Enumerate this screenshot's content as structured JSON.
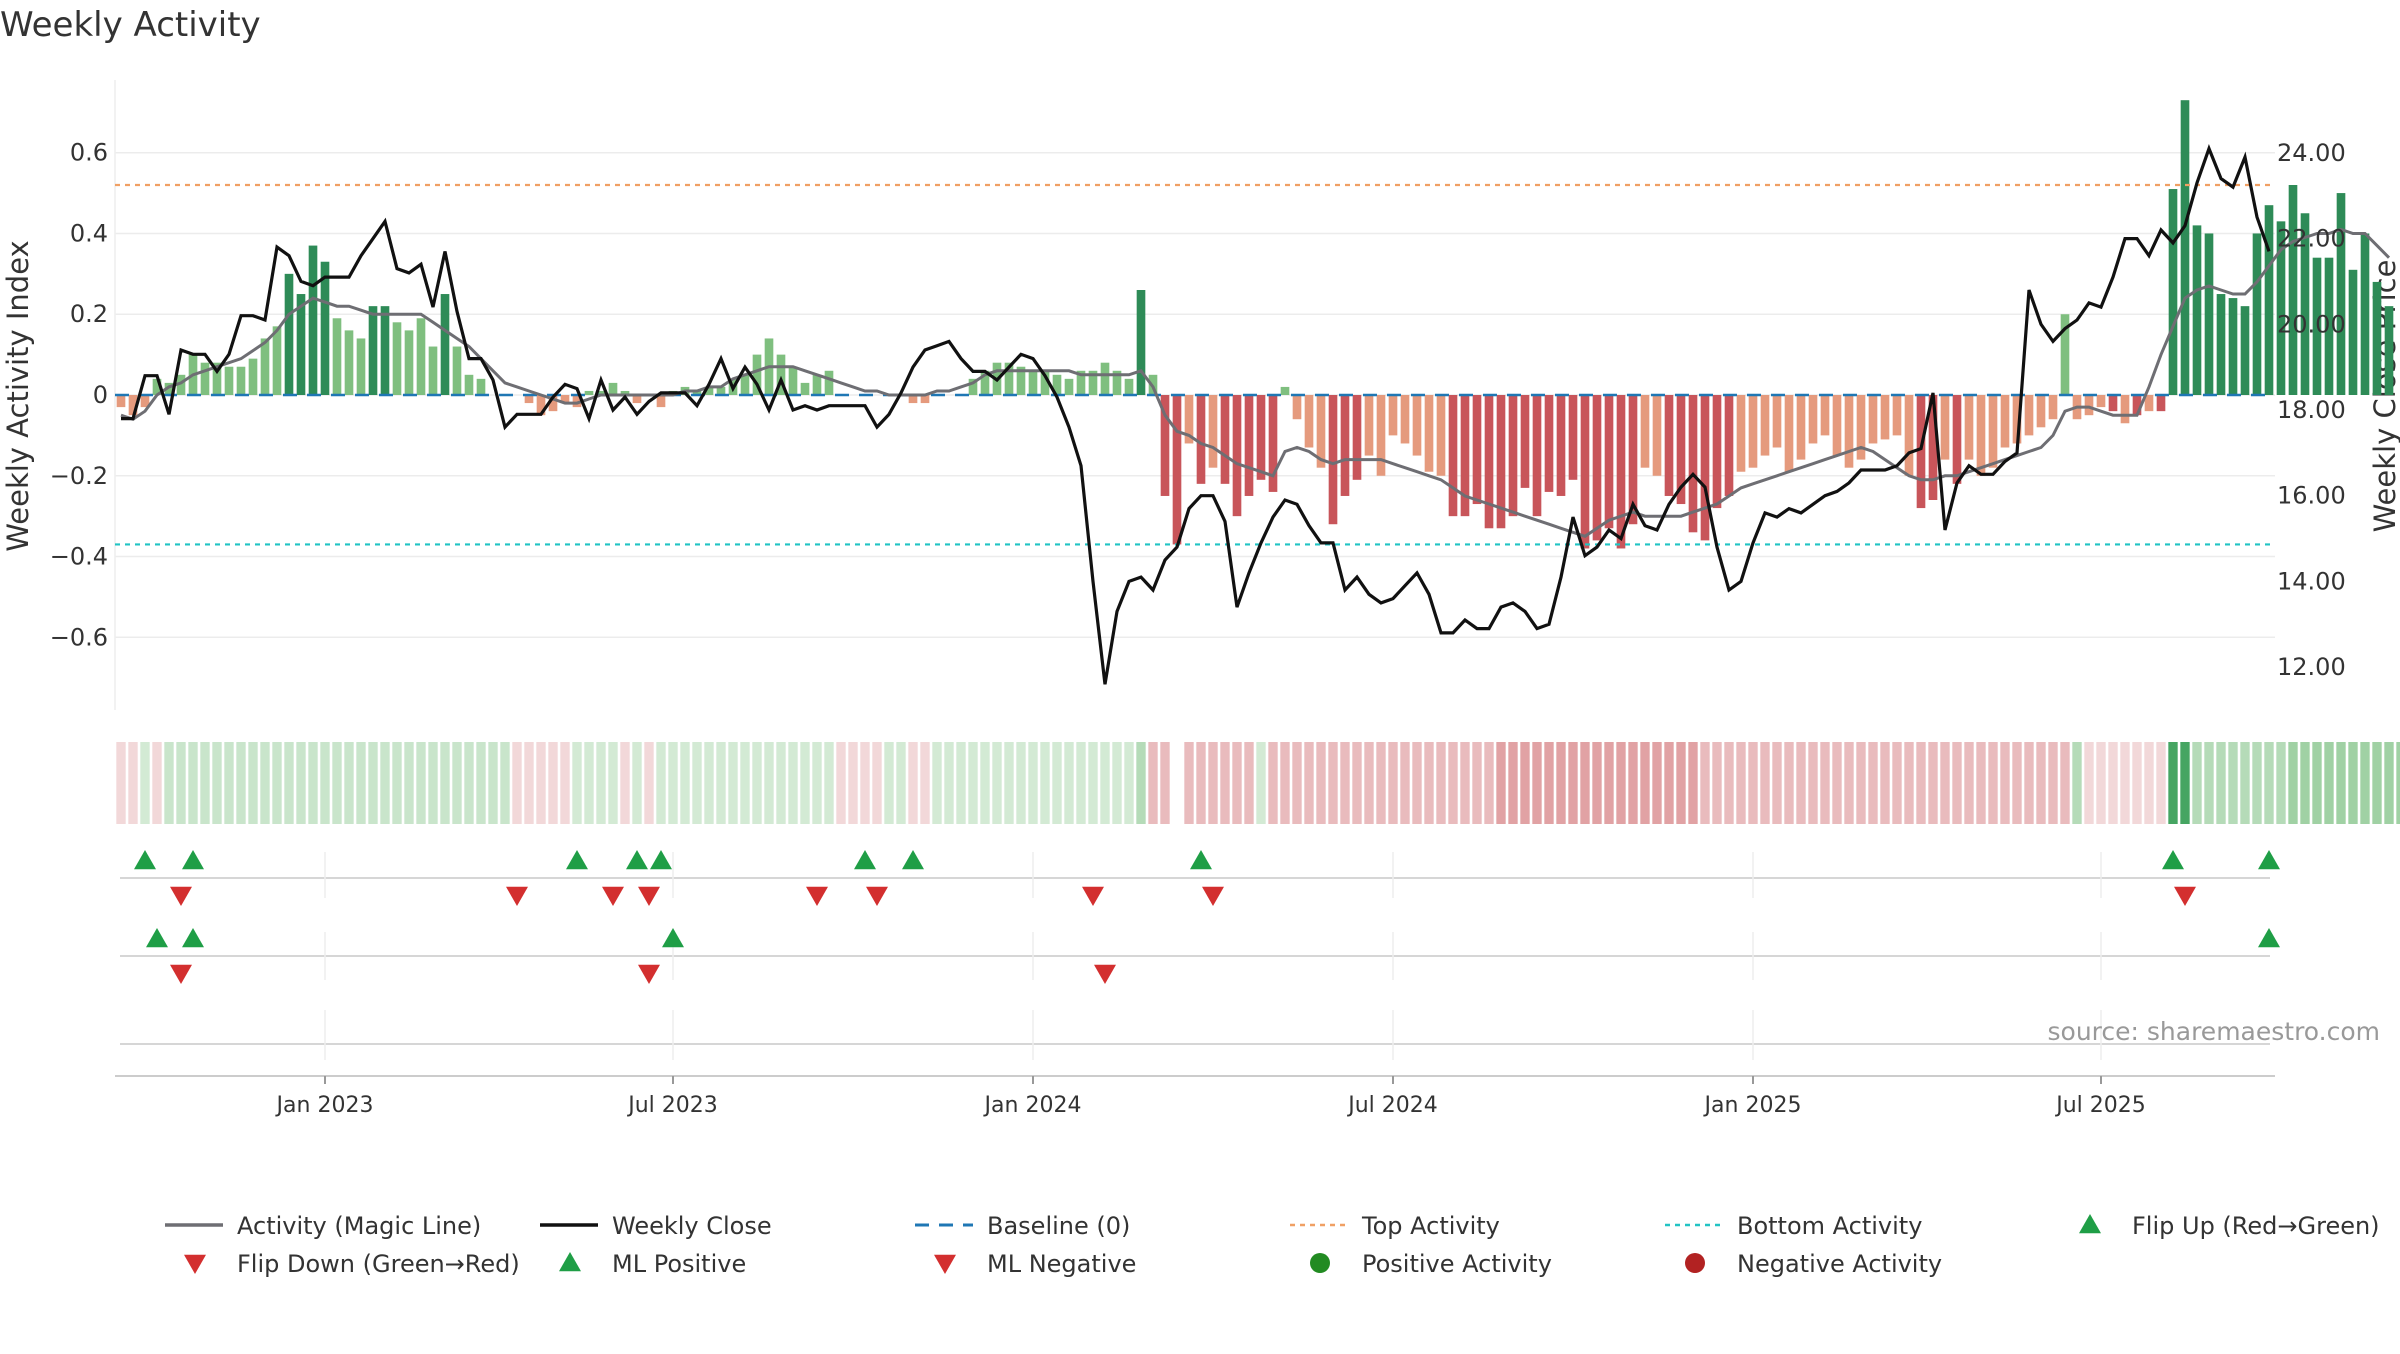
{
  "colors": {
    "pos_dark": "#2e8b57",
    "pos_light": "#7fbf7f",
    "neg_dark": "#c8555a",
    "neg_light": "#e59a7d",
    "magic": "#6e6e73",
    "close": "#111111",
    "baseline": "#1f77b4",
    "top": "#f0a064",
    "bottom": "#22c4c4",
    "marker_green": "#1f9e46",
    "marker_red": "#d32f2f",
    "legend_pos": "#228b22",
    "legend_neg": "#b22222"
  },
  "chart_data": {
    "type": "bar",
    "title": "Weekly Activity",
    "ylabel": "Weekly Activity Index",
    "y2label": "Weekly Close Price",
    "ylim": [
      -0.78,
      0.78
    ],
    "y2lim": [
      11.0,
      25.7
    ],
    "yticks": [
      "0.6",
      "0.4",
      "0.2",
      "0",
      "−0.2",
      "−0.4",
      "−0.6"
    ],
    "yticks_values": [
      0.6,
      0.4,
      0.2,
      0,
      -0.2,
      -0.4,
      -0.6
    ],
    "y2ticks": [
      "24.00",
      "22.00",
      "20.00",
      "18.00",
      "16.00",
      "14.00",
      "12.00"
    ],
    "y2ticks_values": [
      24,
      22,
      20,
      18,
      16,
      14,
      12
    ],
    "xticks": [
      "Jan 2023",
      "Jul 2023",
      "Jan 2024",
      "Jul 2024",
      "Jan 2025",
      "Jul 2025"
    ],
    "xticks_weeks": [
      17,
      46,
      76,
      106,
      136,
      165
    ],
    "weeks": 180,
    "top_activity": 0.52,
    "bottom_activity": -0.37,
    "baseline": 0,
    "activity": [
      -0.03,
      -0.05,
      -0.03,
      0.04,
      0.03,
      0.05,
      0.1,
      0.08,
      0.08,
      0.07,
      0.07,
      0.09,
      0.14,
      0.17,
      0.3,
      0.25,
      0.37,
      0.33,
      0.19,
      0.16,
      0.14,
      0.22,
      0.22,
      0.18,
      0.16,
      0.19,
      0.12,
      0.25,
      0.12,
      0.05,
      0.04,
      0.0,
      0.0,
      0.0,
      -0.02,
      -0.05,
      -0.04,
      -0.02,
      -0.03,
      0.01,
      0.01,
      0.03,
      0.01,
      -0.02,
      0.0,
      -0.03,
      0.01,
      0.02,
      0.01,
      0.02,
      0.02,
      0.04,
      0.05,
      0.1,
      0.14,
      0.1,
      0.07,
      0.03,
      0.05,
      0.06,
      0.0,
      0.0,
      0.0,
      0.0,
      0.0,
      0.0,
      -0.02,
      -0.02,
      0.0,
      0.0,
      0.0,
      0.04,
      0.06,
      0.08,
      0.08,
      0.07,
      0.06,
      0.06,
      0.05,
      0.04,
      0.06,
      0.06,
      0.08,
      0.06,
      0.04,
      0.26,
      0.05,
      -0.25,
      -0.37,
      -0.12,
      -0.22,
      -0.18,
      -0.22,
      -0.3,
      -0.25,
      -0.21,
      -0.24,
      0.02,
      -0.06,
      -0.13,
      -0.18,
      -0.32,
      -0.25,
      -0.21,
      -0.15,
      -0.2,
      -0.1,
      -0.12,
      -0.15,
      -0.19,
      -0.2,
      -0.3,
      -0.3,
      -0.27,
      -0.33,
      -0.33,
      -0.3,
      -0.23,
      -0.3,
      -0.24,
      -0.25,
      -0.21,
      -0.38,
      -0.36,
      -0.33,
      -0.38,
      -0.32,
      -0.18,
      -0.2,
      -0.25,
      -0.27,
      -0.34,
      -0.36,
      -0.28,
      -0.25,
      -0.19,
      -0.18,
      -0.15,
      -0.13,
      -0.19,
      -0.16,
      -0.12,
      -0.1,
      -0.15,
      -0.18,
      -0.16,
      -0.12,
      -0.11,
      -0.1,
      -0.2,
      -0.28,
      -0.26,
      -0.16,
      -0.22,
      -0.16,
      -0.2,
      -0.18,
      -0.13,
      -0.12,
      -0.1,
      -0.08,
      -0.06,
      0.2,
      -0.06,
      -0.05,
      -0.03,
      -0.04,
      -0.07,
      -0.05,
      -0.04,
      -0.04,
      0.51,
      0.73,
      0.42,
      0.4,
      0.25,
      0.24,
      0.22,
      0.4,
      0.47,
      0.43,
      0.52,
      0.45,
      0.34,
      0.34,
      0.5,
      0.31,
      0.4,
      0.28,
      0.22
    ],
    "magic": [
      -0.05,
      -0.06,
      -0.04,
      0.0,
      0.02,
      0.03,
      0.05,
      0.06,
      0.07,
      0.08,
      0.09,
      0.11,
      0.13,
      0.16,
      0.2,
      0.22,
      0.24,
      0.23,
      0.22,
      0.22,
      0.21,
      0.2,
      0.2,
      0.2,
      0.2,
      0.2,
      0.18,
      0.16,
      0.14,
      0.12,
      0.09,
      0.06,
      0.03,
      0.02,
      0.01,
      0.0,
      -0.01,
      -0.02,
      -0.02,
      -0.01,
      0.0,
      0.0,
      0.0,
      0.0,
      0.0,
      0.0,
      0.0,
      0.01,
      0.01,
      0.02,
      0.02,
      0.04,
      0.05,
      0.06,
      0.07,
      0.07,
      0.07,
      0.06,
      0.05,
      0.04,
      0.03,
      0.02,
      0.01,
      0.01,
      0.0,
      0.0,
      0.0,
      0.0,
      0.01,
      0.01,
      0.02,
      0.03,
      0.05,
      0.06,
      0.06,
      0.06,
      0.06,
      0.06,
      0.06,
      0.06,
      0.05,
      0.05,
      0.05,
      0.05,
      0.05,
      0.06,
      0.02,
      -0.05,
      -0.09,
      -0.1,
      -0.12,
      -0.13,
      -0.15,
      -0.17,
      -0.18,
      -0.19,
      -0.2,
      -0.14,
      -0.13,
      -0.14,
      -0.16,
      -0.17,
      -0.16,
      -0.16,
      -0.16,
      -0.16,
      -0.17,
      -0.18,
      -0.19,
      -0.2,
      -0.21,
      -0.23,
      -0.25,
      -0.26,
      -0.27,
      -0.28,
      -0.29,
      -0.3,
      -0.31,
      -0.32,
      -0.33,
      -0.34,
      -0.35,
      -0.33,
      -0.31,
      -0.3,
      -0.29,
      -0.3,
      -0.3,
      -0.3,
      -0.3,
      -0.29,
      -0.28,
      -0.27,
      -0.25,
      -0.23,
      -0.22,
      -0.21,
      -0.2,
      -0.19,
      -0.18,
      -0.17,
      -0.16,
      -0.15,
      -0.14,
      -0.13,
      -0.14,
      -0.16,
      -0.18,
      -0.2,
      -0.21,
      -0.21,
      -0.2,
      -0.2,
      -0.19,
      -0.18,
      -0.17,
      -0.16,
      -0.15,
      -0.14,
      -0.13,
      -0.1,
      -0.04,
      -0.03,
      -0.03,
      -0.04,
      -0.05,
      -0.05,
      -0.05,
      0.02,
      0.1,
      0.17,
      0.24,
      0.26,
      0.27,
      0.26,
      0.25,
      0.25,
      0.28,
      0.32,
      0.36,
      0.38,
      0.39,
      0.4,
      0.4,
      0.41,
      0.4,
      0.4,
      0.37,
      0.34
    ],
    "close": [
      17.8,
      17.8,
      18.8,
      18.8,
      17.9,
      19.4,
      19.3,
      19.3,
      18.9,
      19.3,
      20.2,
      20.2,
      20.1,
      21.8,
      21.6,
      21.0,
      20.9,
      21.1,
      21.1,
      21.1,
      21.6,
      22.0,
      22.4,
      21.3,
      21.2,
      21.4,
      20.4,
      21.7,
      20.3,
      19.2,
      19.2,
      18.7,
      17.6,
      17.9,
      17.9,
      17.9,
      18.3,
      18.6,
      18.5,
      17.8,
      18.7,
      18.0,
      18.3,
      17.9,
      18.2,
      18.4,
      18.4,
      18.4,
      18.1,
      18.6,
      19.2,
      18.5,
      19.0,
      18.6,
      18.0,
      18.7,
      18.0,
      18.1,
      18.0,
      18.1,
      18.1,
      18.1,
      18.1,
      17.6,
      17.9,
      18.4,
      19.0,
      19.4,
      19.5,
      19.6,
      19.2,
      18.9,
      18.9,
      18.7,
      19.0,
      19.3,
      19.2,
      18.8,
      18.3,
      17.6,
      16.7,
      14.0,
      11.6,
      13.3,
      14.0,
      14.1,
      13.8,
      14.5,
      14.8,
      15.7,
      16.0,
      16.0,
      15.4,
      13.4,
      14.2,
      14.9,
      15.5,
      15.9,
      15.8,
      15.3,
      14.9,
      14.9,
      13.8,
      14.1,
      13.7,
      13.5,
      13.6,
      13.9,
      14.2,
      13.7,
      12.8,
      12.8,
      13.1,
      12.9,
      12.9,
      13.4,
      13.5,
      13.3,
      12.9,
      13.0,
      14.1,
      15.5,
      14.6,
      14.8,
      15.2,
      15.0,
      15.8,
      15.3,
      15.2,
      15.8,
      16.2,
      16.5,
      16.2,
      14.8,
      13.8,
      14.0,
      14.9,
      15.6,
      15.5,
      15.7,
      15.6,
      15.8,
      16.0,
      16.1,
      16.3,
      16.6,
      16.6,
      16.6,
      16.7,
      17.0,
      17.1,
      18.4,
      15.2,
      16.3,
      16.7,
      16.5,
      16.5,
      16.8,
      17.0,
      20.8,
      20.0,
      19.6,
      19.9,
      20.1,
      20.5,
      20.4,
      21.1,
      22.0,
      22.0,
      21.6,
      22.2,
      21.9,
      22.3,
      23.3,
      24.1,
      23.4,
      23.2,
      23.9,
      22.5,
      21.7
    ],
    "band_rgba": [
      "rgba(200,85,90,0.23)",
      "rgba(200,85,90,0.23)",
      "rgba(120,190,125,0.33)",
      "rgba(200,85,90,0.23)",
      "rgba(120,190,125,0.4)",
      "rgba(120,190,125,0.4)",
      "rgba(120,190,125,0.4)",
      "rgba(120,190,125,0.4)",
      "rgba(120,190,125,0.4)",
      "rgba(120,190,125,0.4)",
      "rgba(120,190,125,0.4)",
      "rgba(120,190,125,0.4)",
      "rgba(120,190,125,0.4)",
      "rgba(120,190,125,0.4)",
      "rgba(120,190,125,0.4)",
      "rgba(120,190,125,0.4)",
      "rgba(120,190,125,0.4)",
      "rgba(120,190,125,0.4)",
      "rgba(120,190,125,0.4)",
      "rgba(120,190,125,0.4)",
      "rgba(120,190,125,0.4)",
      "rgba(120,190,125,0.4)",
      "rgba(120,190,125,0.4)",
      "rgba(120,190,125,0.4)",
      "rgba(120,190,125,0.4)",
      "rgba(120,190,125,0.4)",
      "rgba(120,190,125,0.4)",
      "rgba(120,190,125,0.4)",
      "rgba(120,190,125,0.4)",
      "rgba(120,190,125,0.4)",
      "rgba(120,190,125,0.4)",
      "rgba(120,190,125,0.4)",
      "rgba(120,190,125,0.4)",
      "rgba(200,85,90,0.23)",
      "rgba(200,85,90,0.23)",
      "rgba(200,85,90,0.23)",
      "rgba(200,85,90,0.23)",
      "rgba(200,85,90,0.23)",
      "rgba(120,190,125,0.33)",
      "rgba(120,190,125,0.33)",
      "rgba(120,190,125,0.33)",
      "rgba(120,190,125,0.33)",
      "rgba(200,85,90,0.23)",
      "rgba(120,190,125,0.33)",
      "rgba(200,85,90,0.23)",
      "rgba(120,190,125,0.33)",
      "rgba(120,190,125,0.33)",
      "rgba(120,190,125,0.33)",
      "rgba(120,190,125,0.33)",
      "rgba(120,190,125,0.33)",
      "rgba(120,190,125,0.33)",
      "rgba(120,190,125,0.33)",
      "rgba(120,190,125,0.33)",
      "rgba(120,190,125,0.33)",
      "rgba(120,190,125,0.33)",
      "rgba(120,190,125,0.33)",
      "rgba(120,190,125,0.33)",
      "rgba(120,190,125,0.33)",
      "rgba(120,190,125,0.33)",
      "rgba(120,190,125,0.33)",
      "rgba(200,85,90,0.23)",
      "rgba(200,85,90,0.23)",
      "rgba(200,85,90,0.23)",
      "rgba(200,85,90,0.23)",
      "rgba(120,190,125,0.33)",
      "rgba(120,190,125,0.33)",
      "rgba(200,85,90,0.23)",
      "rgba(200,85,90,0.23)",
      "rgba(120,190,125,0.33)",
      "rgba(120,190,125,0.33)",
      "rgba(120,190,125,0.33)",
      "rgba(120,190,125,0.33)",
      "rgba(120,190,125,0.33)",
      "rgba(120,190,125,0.33)",
      "rgba(120,190,125,0.33)",
      "rgba(120,190,125,0.33)",
      "rgba(120,190,125,0.33)",
      "rgba(120,190,125,0.33)",
      "rgba(120,190,125,0.33)",
      "rgba(120,190,125,0.33)",
      "rgba(120,190,125,0.33)",
      "rgba(120,190,125,0.33)",
      "rgba(120,190,125,0.33)",
      "rgba(120,190,125,0.33)",
      "rgba(120,190,125,0.33)",
      "rgba(120,190,125,0.55)",
      "rgba(200,85,90,0.4)",
      "rgba(200,85,90,0.4)",
      "rgba(255,255,255,0)",
      "rgba(200,85,90,0.4)",
      "rgba(200,85,90,0.4)",
      "rgba(200,85,90,0.4)",
      "rgba(200,85,90,0.4)",
      "rgba(200,85,90,0.4)",
      "rgba(200,85,90,0.4)",
      "rgba(120,190,125,0.33)",
      "rgba(200,85,90,0.4)",
      "rgba(200,85,90,0.4)",
      "rgba(200,85,90,0.4)",
      "rgba(200,85,90,0.4)",
      "rgba(200,85,90,0.4)",
      "rgba(200,85,90,0.4)",
      "rgba(200,85,90,0.4)",
      "rgba(200,85,90,0.4)",
      "rgba(200,85,90,0.4)",
      "rgba(200,85,90,0.4)",
      "rgba(200,85,90,0.4)",
      "rgba(200,85,90,0.4)",
      "rgba(200,85,90,0.4)",
      "rgba(200,85,90,0.4)",
      "rgba(200,85,90,0.4)",
      "rgba(200,85,90,0.4)",
      "rgba(200,85,90,0.4)",
      "rgba(200,85,90,0.4)",
      "rgba(200,85,90,0.4)",
      "rgba(200,85,90,0.55)",
      "rgba(200,85,90,0.55)",
      "rgba(200,85,90,0.55)",
      "rgba(200,85,90,0.55)",
      "rgba(200,85,90,0.55)",
      "rgba(200,85,90,0.55)",
      "rgba(200,85,90,0.55)",
      "rgba(200,85,90,0.55)",
      "rgba(200,85,90,0.55)",
      "rgba(200,85,90,0.55)",
      "rgba(200,85,90,0.55)",
      "rgba(200,85,90,0.55)",
      "rgba(200,85,90,0.55)",
      "rgba(200,85,90,0.55)",
      "rgba(200,85,90,0.55)",
      "rgba(200,85,90,0.55)",
      "rgba(200,85,90,0.55)",
      "rgba(200,85,90,0.4)",
      "rgba(200,85,90,0.4)",
      "rgba(200,85,90,0.4)",
      "rgba(200,85,90,0.4)",
      "rgba(200,85,90,0.4)",
      "rgba(200,85,90,0.4)",
      "rgba(200,85,90,0.4)",
      "rgba(200,85,90,0.4)",
      "rgba(200,85,90,0.4)",
      "rgba(200,85,90,0.4)",
      "rgba(200,85,90,0.4)",
      "rgba(200,85,90,0.4)",
      "rgba(200,85,90,0.4)",
      "rgba(200,85,90,0.4)",
      "rgba(200,85,90,0.4)",
      "rgba(200,85,90,0.4)",
      "rgba(200,85,90,0.4)",
      "rgba(200,85,90,0.4)",
      "rgba(200,85,90,0.4)",
      "rgba(200,85,90,0.4)",
      "rgba(200,85,90,0.4)",
      "rgba(200,85,90,0.4)",
      "rgba(200,85,90,0.4)",
      "rgba(200,85,90,0.4)",
      "rgba(200,85,90,0.4)",
      "rgba(200,85,90,0.4)",
      "rgba(200,85,90,0.4)",
      "rgba(200,85,90,0.4)",
      "rgba(200,85,90,0.4)",
      "rgba(200,85,90,0.4)",
      "rgba(200,85,90,0.4)",
      "rgba(120,190,125,0.55)",
      "rgba(200,85,90,0.23)",
      "rgba(200,85,90,0.23)",
      "rgba(200,85,90,0.23)",
      "rgba(200,85,90,0.23)",
      "rgba(200,85,90,0.23)",
      "rgba(200,85,90,0.23)",
      "rgba(200,85,90,0.23)",
      "rgba(60,160,90,0.95)",
      "rgba(60,160,90,0.95)",
      "rgba(120,190,125,0.55)",
      "rgba(120,190,125,0.55)",
      "rgba(120,190,125,0.55)",
      "rgba(120,190,125,0.55)",
      "rgba(120,190,125,0.55)",
      "rgba(120,190,125,0.55)",
      "rgba(120,190,125,0.55)",
      "rgba(120,190,125,0.55)",
      "rgba(120,190,125,0.7)",
      "rgba(120,190,125,0.7)",
      "rgba(120,190,125,0.7)",
      "rgba(120,190,125,0.7)",
      "rgba(120,190,125,0.7)",
      "rgba(120,190,125,0.7)",
      "rgba(120,190,125,0.7)",
      "rgba(120,190,125,0.7)",
      "rgba(120,190,125,0.7)",
      "rgba(120,190,125,0.7)",
      "rgba(120,190,125,0.7)",
      "rgba(120,190,125,0.7)",
      "rgba(120,190,125,0.7)"
    ],
    "flip_up_weeks": [
      2,
      6,
      38,
      43,
      45,
      62,
      66,
      90,
      171,
      179
    ],
    "flip_down_weeks": [
      5,
      33,
      41,
      44,
      58,
      63,
      81,
      91,
      172
    ],
    "ml_pos_weeks": [
      3,
      6,
      46,
      179
    ],
    "ml_neg_weeks": [
      5,
      44,
      82
    ]
  },
  "chart": {
    "title": "Weekly Activity",
    "ylabel": "Weekly Activity Index",
    "y2label": "Weekly Close Price",
    "source": "source: sharemaestro.com"
  },
  "legend": {
    "items": [
      {
        "label": "Activity (Magic Line)",
        "marker": "solid-line",
        "color": "#6e6e73"
      },
      {
        "label": "Weekly Close",
        "marker": "solid-line",
        "color": "#111111"
      },
      {
        "label": "Baseline (0)",
        "marker": "dashed-line",
        "color": "#1f77b4"
      },
      {
        "label": "Top Activity",
        "marker": "dotted-line",
        "color": "#f0a064"
      },
      {
        "label": "Bottom Activity",
        "marker": "dotted-line",
        "color": "#22c4c4"
      },
      {
        "label": "Flip Up (Red→Green)",
        "marker": "triangle-up",
        "color": "#1f9e46"
      },
      {
        "label": "Flip Down (Green→Red)",
        "marker": "triangle-down",
        "color": "#d32f2f"
      },
      {
        "label": "ML Positive",
        "marker": "triangle-up",
        "color": "#1f9e46"
      },
      {
        "label": "ML Negative",
        "marker": "triangle-down",
        "color": "#d32f2f"
      },
      {
        "label": "Positive Activity",
        "marker": "circle",
        "color": "#228b22"
      },
      {
        "label": "Negative Activity",
        "marker": "circle",
        "color": "#b22222"
      }
    ]
  }
}
